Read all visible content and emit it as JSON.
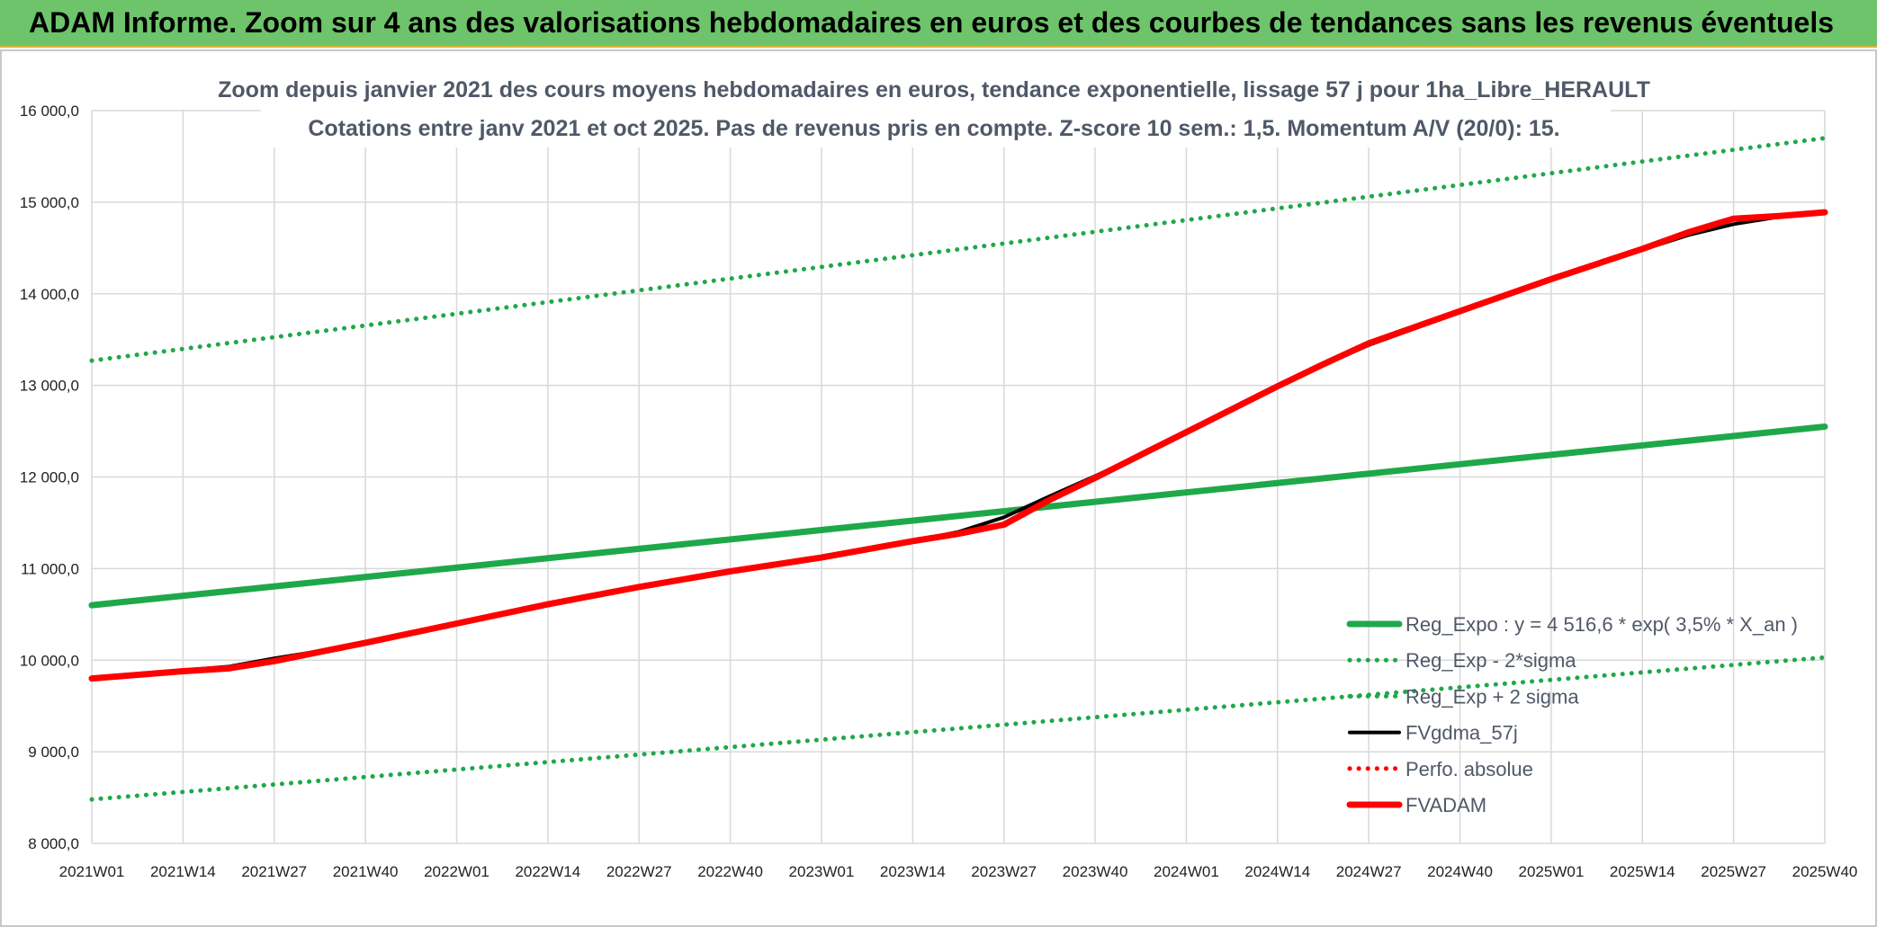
{
  "header": {
    "title": "ADAM Informe. Zoom sur 4 ans des valorisations hebdomadaires en euros et des courbes de tendances sans les revenus éventuels"
  },
  "colors": {
    "header_bg": "#6ec46a",
    "green": "#1fa84a",
    "black": "#000000",
    "red": "#ff0000",
    "grid": "#d9d9d9"
  },
  "chart_data": {
    "type": "line",
    "title_lines": [
      "Zoom depuis janvier 2021 des cours moyens hebdomadaires en euros, tendance exponentielle, lissage 57 j pour 1ha_Libre_HERAULT",
      "Cotations entre janv 2021 et oct 2025. Pas de revenus pris en compte. Z-score 10 sem.: 1,5. Momentum A/V (20/0): 15."
    ],
    "x_tick_labels": [
      "2021W01",
      "2021W14",
      "2021W27",
      "2021W40",
      "2022W01",
      "2022W14",
      "2022W27",
      "2022W40",
      "2023W01",
      "2023W14",
      "2023W27",
      "2023W40",
      "2024W01",
      "2024W14",
      "2024W27",
      "2024W40",
      "2025W01",
      "2025W14",
      "2025W27",
      "2025W40"
    ],
    "y_tick_labels": [
      "8 000,0",
      "9 000,0",
      "10 000,0",
      "11 000,0",
      "12 000,0",
      "13 000,0",
      "14 000,0",
      "15 000,0",
      "16 000,0"
    ],
    "y_ticks": [
      8000,
      9000,
      10000,
      11000,
      12000,
      13000,
      14000,
      15000,
      16000
    ],
    "ylim": [
      8000,
      16000
    ],
    "x_index_range": [
      0,
      19
    ],
    "series": [
      {
        "name": "Reg_Expo : y = 4 516,6 * exp( 3,5% *  X_an )",
        "style": "solid-thick",
        "color": "#1fa84a",
        "x": [
          0,
          19
        ],
        "y": [
          10600,
          12550
        ]
      },
      {
        "name": "Reg_Exp - 2*sigma",
        "style": "dotted",
        "color": "#1fa84a",
        "x": [
          0,
          19
        ],
        "y": [
          8480,
          10030
        ]
      },
      {
        "name": "Reg_Exp + 2 sigma",
        "style": "dotted",
        "color": "#1fa84a",
        "x": [
          0,
          19
        ],
        "y": [
          13270,
          15700
        ]
      },
      {
        "name": "FVgdma_57j",
        "style": "solid",
        "color": "#000000",
        "x": [
          0,
          1,
          1.5,
          2,
          2.5,
          3,
          4,
          5,
          6,
          7,
          8,
          9,
          9.5,
          10,
          10.5,
          11,
          11.5,
          12,
          12.5,
          13,
          13.5,
          14,
          15,
          16,
          17,
          17.5,
          18,
          18.5,
          19
        ],
        "y": [
          9800,
          9890,
          9930,
          10020,
          10100,
          10200,
          10400,
          10610,
          10800,
          10970,
          11120,
          11300,
          11400,
          11560,
          11790,
          12010,
          12240,
          12490,
          12740,
          12990,
          13220,
          13440,
          13800,
          14150,
          14480,
          14640,
          14760,
          14840,
          14880
        ]
      },
      {
        "name": "Perfo. absolue",
        "style": "dotted",
        "color": "#ff0000",
        "x": [],
        "y": []
      },
      {
        "name": "FVADAM",
        "style": "solid-thick",
        "color": "#ff0000",
        "x": [
          0,
          1,
          1.5,
          2,
          2.5,
          3,
          4,
          5,
          6,
          7,
          8,
          9,
          9.5,
          10,
          10.5,
          11,
          11.5,
          12,
          12.5,
          13,
          13.5,
          14,
          15,
          16,
          17,
          17.5,
          18,
          18.5,
          19
        ],
        "y": [
          9800,
          9880,
          9910,
          9990,
          10090,
          10190,
          10400,
          10610,
          10800,
          10970,
          11120,
          11300,
          11380,
          11480,
          11750,
          11990,
          12240,
          12490,
          12740,
          12990,
          13230,
          13460,
          13810,
          14160,
          14490,
          14670,
          14820,
          14850,
          14890
        ]
      }
    ],
    "legend_position": "bottom-right"
  }
}
